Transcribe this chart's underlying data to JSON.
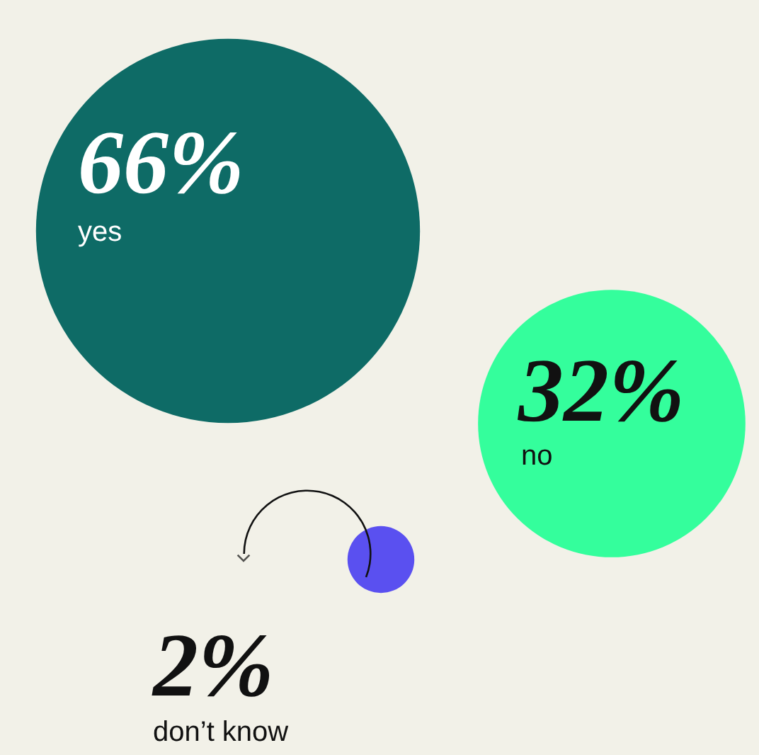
{
  "chart_data": {
    "type": "other",
    "categories": [
      "yes",
      "no",
      "don’t know"
    ],
    "values": [
      66,
      32,
      2
    ],
    "value_labels": [
      "66%",
      "32%",
      "2%"
    ],
    "colors": [
      "#0e6b66",
      "#34fe9c",
      "#5a50f0"
    ]
  }
}
